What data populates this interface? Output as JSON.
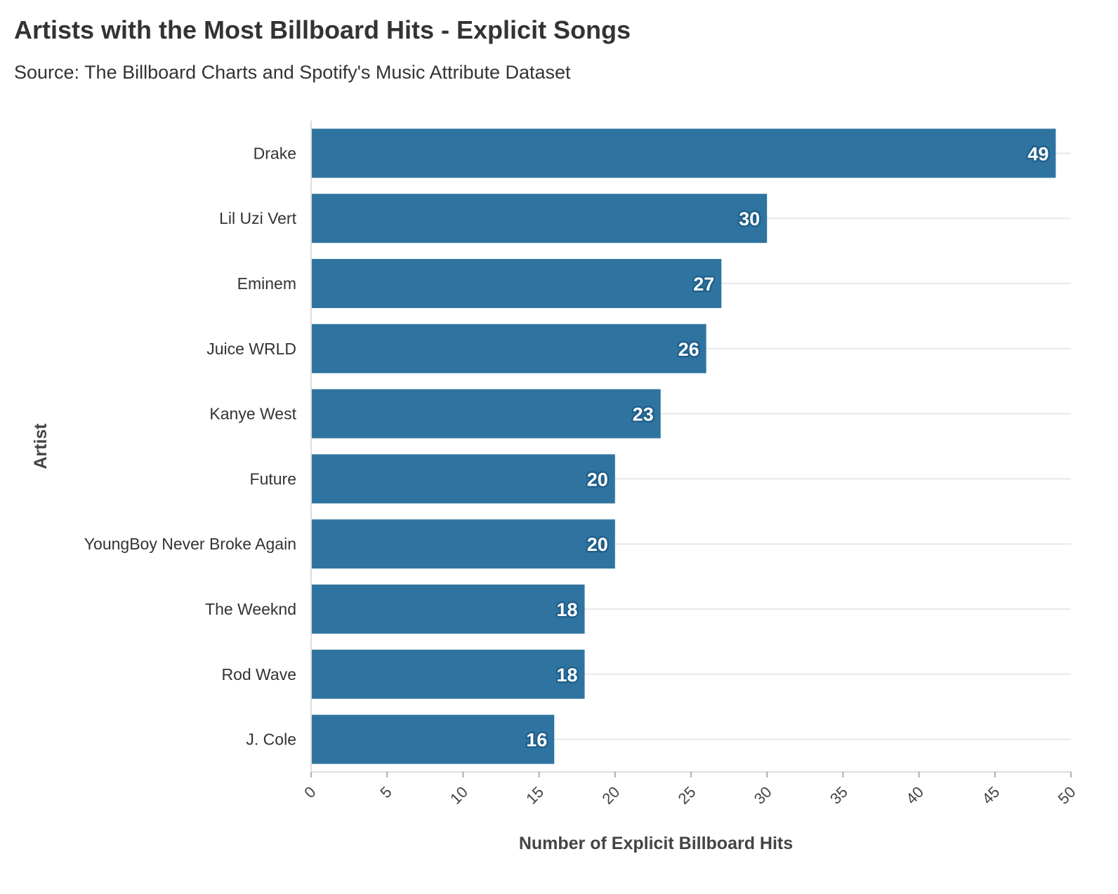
{
  "chart_data": {
    "type": "bar",
    "orientation": "horizontal",
    "title": "Artists with the Most Billboard Hits - Explicit Songs",
    "subtitle": "Source: The Billboard Charts and Spotify's Music Attribute Dataset",
    "xlabel": "Number of Explicit Billboard Hits",
    "ylabel": "Artist",
    "categories": [
      "Drake",
      "Lil Uzi Vert",
      "Eminem",
      "Juice WRLD",
      "Kanye West",
      "Future",
      "YoungBoy Never Broke Again",
      "The Weeknd",
      "Rod Wave",
      "J. Cole"
    ],
    "values": [
      49,
      30,
      27,
      26,
      23,
      20,
      20,
      18,
      18,
      16
    ],
    "xlim": [
      0,
      50
    ],
    "xticks": [
      0,
      5,
      10,
      15,
      20,
      25,
      30,
      35,
      40,
      45,
      50
    ],
    "grid": true,
    "bar_color": "#2f74a0",
    "label_outline_color": "#1f5f8b",
    "data_labels": true
  }
}
